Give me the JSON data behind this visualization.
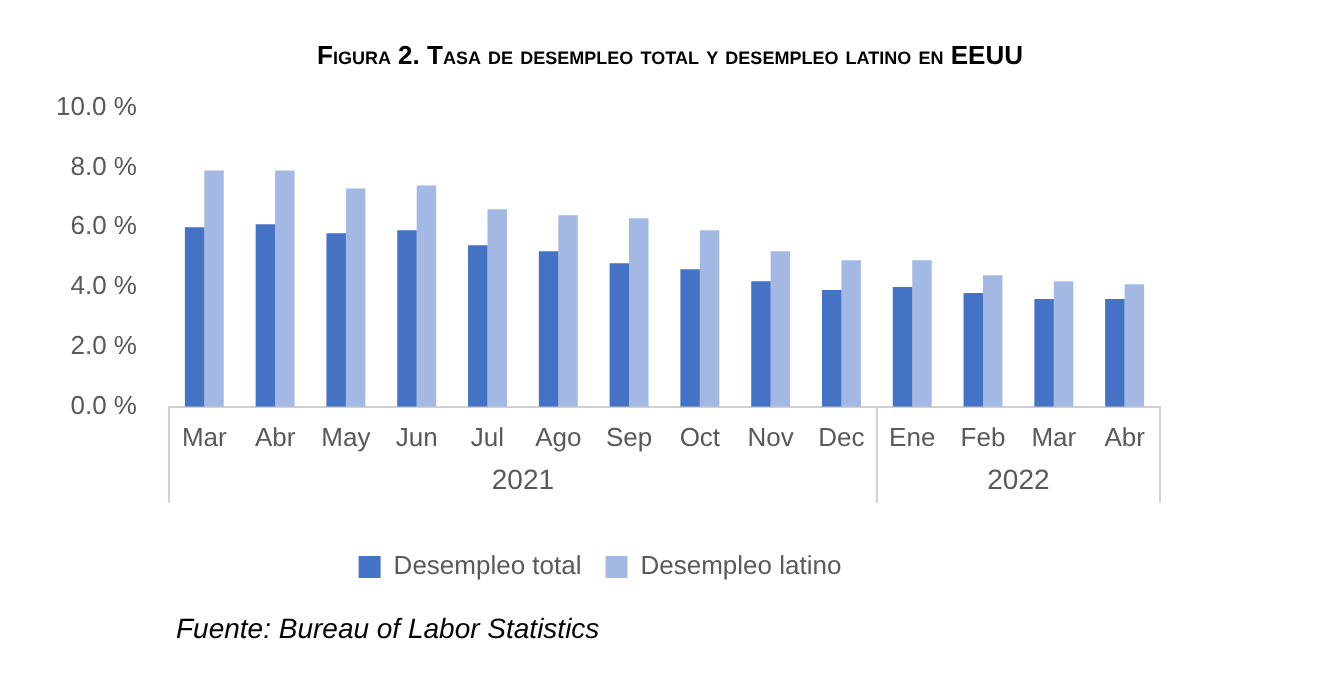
{
  "chart_data": {
    "type": "bar",
    "title": "Figura 2. Tasa de desempleo total y desempleo latino en EEUU",
    "x": [
      "2021-03",
      "2021-04",
      "2021-05",
      "2021-06",
      "2021-07",
      "2021-08",
      "2021-09",
      "2021-10",
      "2021-11",
      "2021-12",
      "2022-01",
      "2022-02",
      "2022-03",
      "2022-04"
    ],
    "xlim": [
      "2021-02-16",
      "2022-04-16"
    ],
    "xticks": [
      {
        "value": "2021-03",
        "label": "Mar"
      },
      {
        "value": "2021-04",
        "label": "Abr"
      },
      {
        "value": "2021-05",
        "label": "May"
      },
      {
        "value": "2021-06",
        "label": "Jun"
      },
      {
        "value": "2021-07",
        "label": "Jul"
      },
      {
        "value": "2021-08",
        "label": "Ago"
      },
      {
        "value": "2021-09",
        "label": "Sep"
      },
      {
        "value": "2021-10",
        "label": "Oct"
      },
      {
        "value": "2021-11",
        "label": "Nov"
      },
      {
        "value": "2021-12",
        "label": "Dec"
      },
      {
        "value": "2022-01",
        "label": "Ene"
      },
      {
        "value": "2022-02",
        "label": "Feb"
      },
      {
        "value": "2022-03",
        "label": "Mar"
      },
      {
        "value": "2022-04",
        "label": "Abr"
      }
    ],
    "series": [
      {
        "name": "Desempleo total",
        "color": "#4472c4",
        "values": [
          6.0,
          6.1,
          5.8,
          5.9,
          5.4,
          5.2,
          4.8,
          4.6,
          4.2,
          3.9,
          4.0,
          3.8,
          3.6,
          3.6
        ]
      },
      {
        "name": "Desempleo latino",
        "color": "#a3b8e2",
        "values": [
          7.9,
          7.9,
          7.3,
          7.4,
          6.6,
          6.4,
          6.3,
          5.9,
          5.2,
          4.9,
          4.9,
          4.4,
          4.2,
          4.1
        ]
      }
    ],
    "ylim": [
      0,
      10
    ],
    "yticks": [
      {
        "value": 0,
        "label": "0.0 %"
      },
      {
        "value": 2,
        "label": "2.0 %"
      },
      {
        "value": 4,
        "label": "4.0 %"
      },
      {
        "value": 6,
        "label": "6.0 %"
      },
      {
        "value": 8,
        "label": "8.0 %"
      },
      {
        "value": 10,
        "label": "10.0 %"
      }
    ],
    "legend": "bottom",
    "grid": false,
    "annotations": [
      "2021",
      "2022",
      "Fuente: Bureau of Labor Statistics"
    ]
  }
}
